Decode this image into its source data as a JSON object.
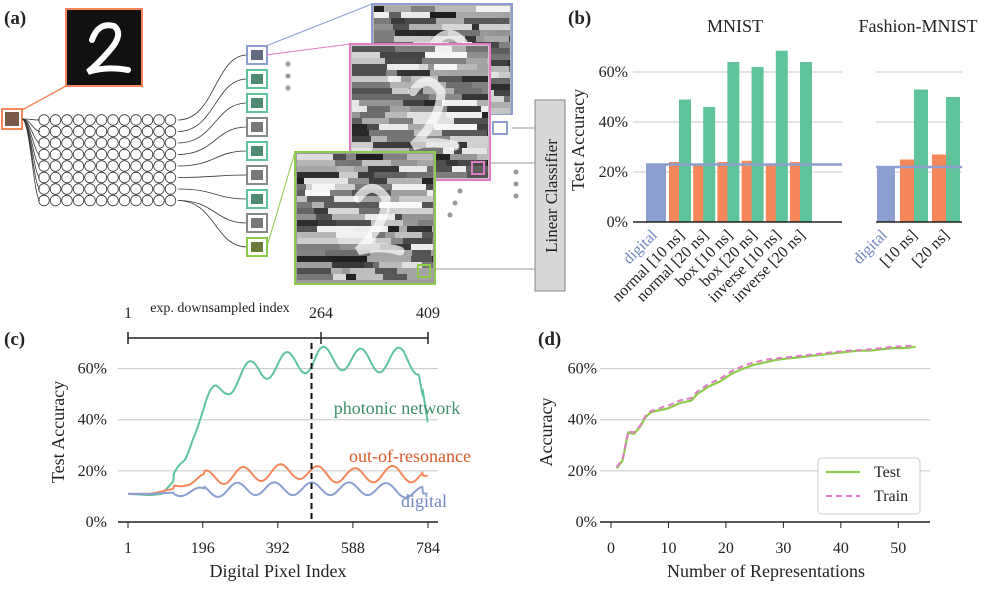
{
  "colors": {
    "green": "#5fc49b",
    "orange": "#f6875a",
    "blue": "#8c9fd0",
    "lime": "#8dcc4a",
    "pink": "#e07cc6",
    "text_orange": "#d8582a",
    "text_blue": "#6f86c4",
    "text_green": "#3f8f6a"
  },
  "panels": {
    "a": "(a)",
    "b": "(b)",
    "c": "(c)",
    "d": "(d)"
  },
  "diagram": {
    "classifier_label": "Linear Classifier",
    "icons": [
      "digit-2-image",
      "multimode-fiber-grid",
      "speckle-image",
      "speckle-image",
      "speckle-image"
    ]
  },
  "chart_data": [
    {
      "type": "bar",
      "id": "b-mnist",
      "title": "MNIST",
      "ylabel": "Test Accuracy",
      "ylim": [
        0,
        0.7
      ],
      "yticks": [
        "0%",
        "20%",
        "40%",
        "60%"
      ],
      "categories": [
        "normal [10 ns]",
        "normal [20 ns]",
        "box [10 ns]",
        "box [20 ns]",
        "inverse [10 ns]",
        "inverse [20 ns]"
      ],
      "digital_label": "digital",
      "digital_value": 0.23,
      "series": [
        {
          "values": [
            0.24,
            0.23,
            0.24,
            0.245,
            0.23,
            0.24
          ]
        },
        {
          "values": [
            0.49,
            0.46,
            0.64,
            0.62,
            0.685,
            0.64
          ]
        }
      ]
    },
    {
      "type": "bar",
      "id": "b-fashion",
      "title": "Fashion-MNIST",
      "ylim": [
        0,
        0.7
      ],
      "categories": [
        "[10 ns]",
        "[20 ns]"
      ],
      "digital_label": "digital",
      "digital_value": 0.22,
      "series": [
        {
          "values": [
            0.25,
            0.27
          ]
        },
        {
          "values": [
            0.53,
            0.5
          ]
        }
      ]
    },
    {
      "type": "line",
      "id": "c",
      "xlabel": "Digital Pixel Index",
      "ylabel": "Test Accuracy",
      "xlim": [
        1,
        784
      ],
      "ylim": [
        0,
        0.7
      ],
      "xticks": [
        "1",
        "196",
        "392",
        "588",
        "784"
      ],
      "yticks": [
        "0%",
        "20%",
        "40%",
        "60%"
      ],
      "top_axis": {
        "label": "exp. downsampled index",
        "ticks": [
          "1",
          "264",
          "409"
        ]
      },
      "annotations": [
        "photonic network",
        "out-of-resonance",
        "digital"
      ],
      "series": [
        {
          "name": "photonic network",
          "x": [
            1,
            60,
            90,
            120,
            150,
            170,
            196,
            230,
            260,
            300,
            340,
            392,
            440,
            480,
            500,
            540,
            588,
            640,
            680,
            720,
            760,
            784
          ],
          "y": [
            0.11,
            0.105,
            0.11,
            0.16,
            0.25,
            0.35,
            0.43,
            0.5,
            0.54,
            0.57,
            0.6,
            0.61,
            0.63,
            0.625,
            0.64,
            0.64,
            0.635,
            0.63,
            0.63,
            0.64,
            0.62,
            0.38
          ]
        },
        {
          "name": "out-of-resonance",
          "x": [
            1,
            60,
            120,
            150,
            196,
            260,
            300,
            392,
            440,
            480,
            540,
            588,
            640,
            700,
            784
          ],
          "y": [
            0.11,
            0.11,
            0.13,
            0.16,
            0.17,
            0.18,
            0.185,
            0.195,
            0.2,
            0.19,
            0.185,
            0.18,
            0.185,
            0.19,
            0.18
          ]
        },
        {
          "name": "digital",
          "x": [
            1,
            60,
            120,
            196,
            260,
            300,
            392,
            480,
            540,
            588,
            640,
            700,
            784
          ],
          "y": [
            0.11,
            0.11,
            0.115,
            0.12,
            0.125,
            0.13,
            0.13,
            0.13,
            0.13,
            0.13,
            0.13,
            0.125,
            0.11
          ]
        }
      ],
      "vline_x": 480
    },
    {
      "type": "line",
      "id": "d",
      "xlabel": "Number of Representations",
      "ylabel": "Accuracy",
      "xlim": [
        0,
        55
      ],
      "ylim": [
        0,
        0.7
      ],
      "xticks": [
        "0",
        "10",
        "20",
        "30",
        "40",
        "50"
      ],
      "yticks": [
        "0%",
        "20%",
        "40%",
        "60%"
      ],
      "legend": "bottom-right",
      "series": [
        {
          "name": "Test",
          "x": [
            1,
            2,
            3,
            4,
            5,
            6,
            7,
            8,
            9,
            10,
            11,
            12,
            13,
            14,
            15,
            17,
            19,
            21,
            23,
            25,
            27,
            29,
            31,
            33,
            35,
            37,
            39,
            41,
            43,
            45,
            47,
            49,
            51,
            53
          ],
          "y": [
            0.21,
            0.24,
            0.35,
            0.345,
            0.37,
            0.41,
            0.43,
            0.435,
            0.44,
            0.445,
            0.455,
            0.465,
            0.47,
            0.475,
            0.5,
            0.53,
            0.55,
            0.58,
            0.6,
            0.615,
            0.625,
            0.635,
            0.64,
            0.645,
            0.65,
            0.655,
            0.66,
            0.665,
            0.67,
            0.67,
            0.675,
            0.68,
            0.68,
            0.685
          ]
        },
        {
          "name": "Train",
          "x": [
            1,
            2,
            3,
            4,
            5,
            6,
            7,
            8,
            9,
            10,
            11,
            12,
            13,
            14,
            15,
            17,
            19,
            21,
            23,
            25,
            27,
            29,
            31,
            33,
            35,
            37,
            39,
            41,
            43,
            45,
            47,
            49,
            51,
            53
          ],
          "y": [
            0.215,
            0.245,
            0.355,
            0.35,
            0.375,
            0.415,
            0.435,
            0.44,
            0.45,
            0.455,
            0.465,
            0.475,
            0.48,
            0.485,
            0.51,
            0.54,
            0.56,
            0.59,
            0.61,
            0.625,
            0.635,
            0.64,
            0.645,
            0.65,
            0.655,
            0.66,
            0.665,
            0.67,
            0.672,
            0.675,
            0.68,
            0.685,
            0.688,
            0.69
          ]
        }
      ]
    }
  ]
}
